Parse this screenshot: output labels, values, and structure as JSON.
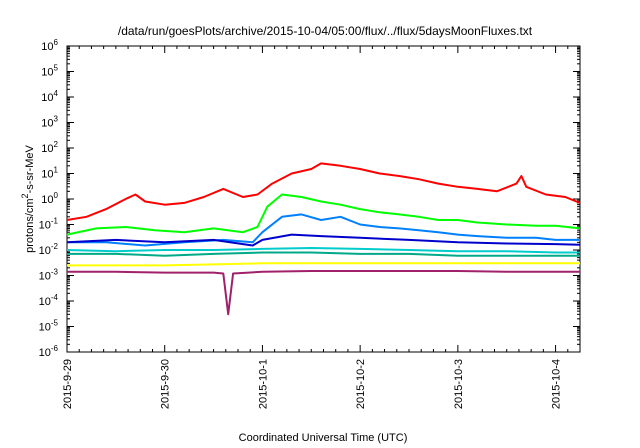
{
  "chart_data": {
    "type": "line",
    "title": "/data/run/goesPlots/archive/2015-10-04/05:00/flux/../flux/5daysMoonFluxes.txt",
    "xlabel": "Coordinated Universal Time (UTC)",
    "ylabel": {
      "prefix": "protons/cm",
      "sup": "2",
      "suffix": "-s-sr-MeV"
    },
    "yscale": "log",
    "ylim_exp": [
      -6,
      6
    ],
    "y_ticks": [
      {
        "base": "10",
        "exp": "-6"
      },
      {
        "base": "10",
        "exp": "-5"
      },
      {
        "base": "10",
        "exp": "-4"
      },
      {
        "base": "10",
        "exp": "-3"
      },
      {
        "base": "10",
        "exp": "-2"
      },
      {
        "base": "10",
        "exp": "-1"
      },
      {
        "base": "10",
        "exp": "0"
      },
      {
        "base": "10",
        "exp": "1"
      },
      {
        "base": "10",
        "exp": "2"
      },
      {
        "base": "10",
        "exp": "3"
      },
      {
        "base": "10",
        "exp": "4"
      },
      {
        "base": "10",
        "exp": "5"
      },
      {
        "base": "10",
        "exp": "6"
      }
    ],
    "x_ticks": [
      "2015-9-29",
      "2015-9-30",
      "2015-10-1",
      "2015-10-2",
      "2015-10-3",
      "2015-10-4"
    ],
    "xlim_days": [
      0,
      5.25
    ],
    "legend": "none",
    "grid": false,
    "series": [
      {
        "color": "#ff0000",
        "points": [
          [
            0,
            0.15
          ],
          [
            0.2,
            0.2
          ],
          [
            0.4,
            0.4
          ],
          [
            0.6,
            1.0
          ],
          [
            0.7,
            1.5
          ],
          [
            0.8,
            0.8
          ],
          [
            1.0,
            0.6
          ],
          [
            1.2,
            0.7
          ],
          [
            1.4,
            1.2
          ],
          [
            1.6,
            2.5
          ],
          [
            1.8,
            1.2
          ],
          [
            1.95,
            1.5
          ],
          [
            2.1,
            4
          ],
          [
            2.3,
            10
          ],
          [
            2.5,
            15
          ],
          [
            2.6,
            25
          ],
          [
            2.8,
            20
          ],
          [
            3.0,
            15
          ],
          [
            3.2,
            10
          ],
          [
            3.4,
            8
          ],
          [
            3.6,
            6
          ],
          [
            3.8,
            4
          ],
          [
            4.0,
            3
          ],
          [
            4.2,
            2.5
          ],
          [
            4.4,
            2
          ],
          [
            4.6,
            4
          ],
          [
            4.65,
            8
          ],
          [
            4.7,
            3
          ],
          [
            4.9,
            1.5
          ],
          [
            5.1,
            1.2
          ],
          [
            5.25,
            0.7
          ]
        ]
      },
      {
        "color": "#00ff00",
        "points": [
          [
            0,
            0.04
          ],
          [
            0.3,
            0.07
          ],
          [
            0.6,
            0.08
          ],
          [
            0.9,
            0.06
          ],
          [
            1.2,
            0.05
          ],
          [
            1.5,
            0.07
          ],
          [
            1.8,
            0.05
          ],
          [
            1.95,
            0.08
          ],
          [
            2.05,
            0.5
          ],
          [
            2.2,
            1.5
          ],
          [
            2.4,
            1.2
          ],
          [
            2.6,
            0.8
          ],
          [
            2.8,
            0.6
          ],
          [
            3.0,
            0.4
          ],
          [
            3.2,
            0.3
          ],
          [
            3.4,
            0.25
          ],
          [
            3.6,
            0.2
          ],
          [
            3.8,
            0.15
          ],
          [
            4.0,
            0.15
          ],
          [
            4.2,
            0.12
          ],
          [
            4.5,
            0.1
          ],
          [
            4.8,
            0.09
          ],
          [
            5.0,
            0.09
          ],
          [
            5.25,
            0.07
          ]
        ]
      },
      {
        "color": "#0080ff",
        "points": [
          [
            0,
            0.02
          ],
          [
            0.4,
            0.02
          ],
          [
            0.8,
            0.015
          ],
          [
            1.2,
            0.02
          ],
          [
            1.6,
            0.025
          ],
          [
            1.9,
            0.02
          ],
          [
            2.0,
            0.05
          ],
          [
            2.2,
            0.2
          ],
          [
            2.4,
            0.25
          ],
          [
            2.6,
            0.15
          ],
          [
            2.8,
            0.2
          ],
          [
            3.0,
            0.1
          ],
          [
            3.2,
            0.08
          ],
          [
            3.4,
            0.07
          ],
          [
            3.6,
            0.06
          ],
          [
            3.8,
            0.05
          ],
          [
            4.0,
            0.04
          ],
          [
            4.2,
            0.035
          ],
          [
            4.5,
            0.03
          ],
          [
            4.8,
            0.03
          ],
          [
            5.0,
            0.025
          ],
          [
            5.25,
            0.025
          ]
        ]
      },
      {
        "color": "#0000cc",
        "points": [
          [
            0,
            0.02
          ],
          [
            0.5,
            0.025
          ],
          [
            1.0,
            0.02
          ],
          [
            1.5,
            0.025
          ],
          [
            1.9,
            0.015
          ],
          [
            2.0,
            0.025
          ],
          [
            2.3,
            0.04
          ],
          [
            2.6,
            0.035
          ],
          [
            3.0,
            0.03
          ],
          [
            3.5,
            0.025
          ],
          [
            4.0,
            0.02
          ],
          [
            4.5,
            0.018
          ],
          [
            5.0,
            0.017
          ],
          [
            5.25,
            0.016
          ]
        ]
      },
      {
        "color": "#00cccc",
        "points": [
          [
            0,
            0.01
          ],
          [
            0.5,
            0.009
          ],
          [
            1.0,
            0.01
          ],
          [
            1.5,
            0.01
          ],
          [
            2.0,
            0.011
          ],
          [
            2.5,
            0.012
          ],
          [
            3.0,
            0.011
          ],
          [
            3.5,
            0.01
          ],
          [
            4.0,
            0.009
          ],
          [
            4.5,
            0.009
          ],
          [
            5.0,
            0.008
          ],
          [
            5.25,
            0.008
          ]
        ]
      },
      {
        "color": "#00aa88",
        "points": [
          [
            0,
            0.007
          ],
          [
            0.5,
            0.007
          ],
          [
            1.0,
            0.006
          ],
          [
            1.5,
            0.007
          ],
          [
            2.0,
            0.008
          ],
          [
            2.5,
            0.008
          ],
          [
            3.0,
            0.007
          ],
          [
            3.5,
            0.007
          ],
          [
            4.0,
            0.006
          ],
          [
            4.5,
            0.006
          ],
          [
            5.0,
            0.006
          ],
          [
            5.25,
            0.006
          ]
        ]
      },
      {
        "color": "#ffff00",
        "points": [
          [
            0,
            0.0025
          ],
          [
            1.0,
            0.0025
          ],
          [
            2.0,
            0.003
          ],
          [
            3.0,
            0.003
          ],
          [
            4.0,
            0.003
          ],
          [
            5.0,
            0.003
          ],
          [
            5.25,
            0.003
          ]
        ]
      },
      {
        "color": "#a0206a",
        "points": [
          [
            0,
            0.0014
          ],
          [
            0.5,
            0.0014
          ],
          [
            1.0,
            0.0013
          ],
          [
            1.5,
            0.0013
          ],
          [
            1.6,
            0.0012
          ],
          [
            1.65,
            3e-05
          ],
          [
            1.7,
            0.0012
          ],
          [
            2.0,
            0.0014
          ],
          [
            2.5,
            0.0015
          ],
          [
            3.0,
            0.0015
          ],
          [
            3.5,
            0.0015
          ],
          [
            4.0,
            0.0015
          ],
          [
            4.5,
            0.0014
          ],
          [
            5.0,
            0.0014
          ],
          [
            5.25,
            0.0014
          ]
        ]
      }
    ]
  }
}
